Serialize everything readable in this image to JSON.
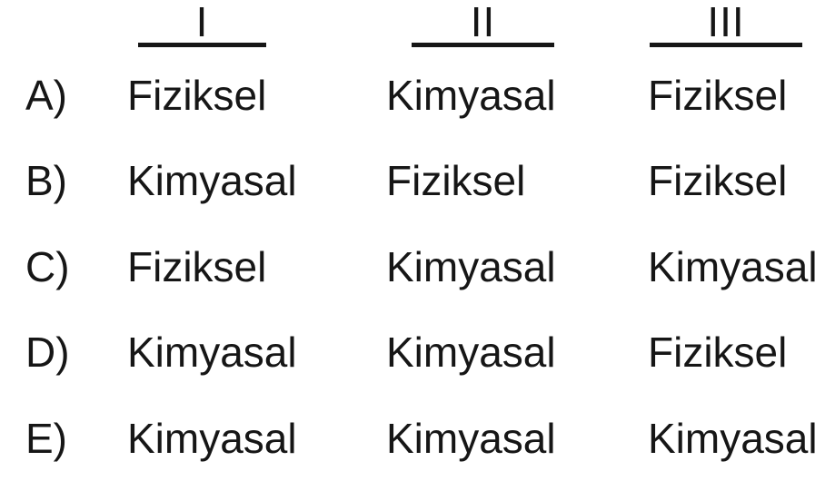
{
  "table": {
    "text_color": "#161616",
    "background_color": "#ffffff",
    "columns": [
      {
        "label": "I"
      },
      {
        "label": "II"
      },
      {
        "label": "III"
      }
    ],
    "rows": [
      {
        "option_label": "A)",
        "col1": "Fiziksel",
        "col2": "Kimyasal",
        "col3": "Fiziksel"
      },
      {
        "option_label": "B)",
        "col1": "Kimyasal",
        "col2": "Fiziksel",
        "col3": "Fiziksel"
      },
      {
        "option_label": "C)",
        "col1": "Fiziksel",
        "col2": "Kimyasal",
        "col3": "Kimyasal"
      },
      {
        "option_label": "D)",
        "col1": "Kimyasal",
        "col2": "Kimyasal",
        "col3": "Fiziksel"
      },
      {
        "option_label": "E)",
        "col1": "Kimyasal",
        "col2": "Kimyasal",
        "col3": "Kimyasal"
      }
    ]
  }
}
